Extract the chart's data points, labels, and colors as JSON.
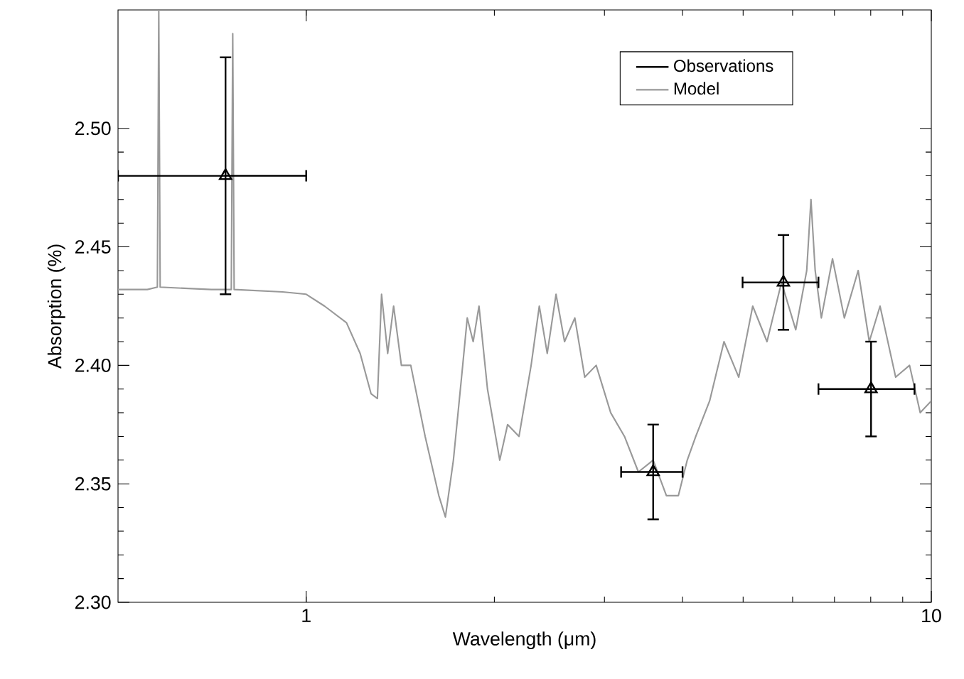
{
  "chart_data": {
    "type": "line",
    "xlabel": "Wavelength (μm)",
    "ylabel": "Absorption (%)",
    "log": "x",
    "xlim": [
      0.5,
      10
    ],
    "ylim": [
      2.3,
      2.55
    ],
    "xticks": [
      1,
      10
    ],
    "yticks": [
      {
        "value": 2.3,
        "label": "2.30"
      },
      {
        "value": 2.35,
        "label": "2.35"
      },
      {
        "value": 2.4,
        "label": "2.40"
      },
      {
        "value": 2.45,
        "label": "2.45"
      },
      {
        "value": 2.5,
        "label": "2.50"
      }
    ],
    "grid": false,
    "legend": "top right",
    "series": [
      {
        "name": "Observations",
        "type": "scatter",
        "color": "#000000",
        "marker": "triangle",
        "x": [
          0.743,
          3.59,
          5.8,
          8.01
        ],
        "values": [
          2.48,
          2.355,
          2.435,
          2.39
        ],
        "errors": [
          0.05,
          0.02,
          0.02,
          0.02
        ],
        "xerrors": [
          [
            0.5,
            1.0
          ],
          [
            3.19,
            4.0
          ],
          [
            4.99,
            6.6
          ],
          [
            6.6,
            9.4
          ]
        ]
      },
      {
        "name": "Model",
        "color": "#999999",
        "x": [
          0.5,
          0.557,
          0.578,
          0.581,
          0.584,
          0.705,
          0.759,
          0.763,
          0.767,
          0.917,
          1.0,
          1.07,
          1.16,
          1.22,
          1.27,
          1.3,
          1.32,
          1.35,
          1.38,
          1.42,
          1.47,
          1.55,
          1.63,
          1.67,
          1.72,
          1.78,
          1.81,
          1.85,
          1.89,
          1.95,
          2.04,
          2.1,
          2.19,
          2.29,
          2.36,
          2.43,
          2.51,
          2.59,
          2.69,
          2.79,
          2.91,
          3.07,
          3.23,
          3.4,
          3.59,
          3.77,
          3.94,
          4.07,
          4.2,
          4.42,
          4.66,
          4.92,
          5.18,
          5.46,
          5.76,
          6.07,
          6.32,
          6.42,
          6.52,
          6.67,
          6.95,
          7.26,
          7.64,
          7.96,
          8.28,
          8.77,
          9.23,
          9.6,
          10.0
        ],
        "values": [
          2.432,
          2.432,
          2.433,
          2.55,
          2.433,
          2.432,
          2.432,
          2.54,
          2.432,
          2.431,
          2.43,
          2.425,
          2.418,
          2.405,
          2.388,
          2.386,
          2.43,
          2.405,
          2.425,
          2.4,
          2.4,
          2.37,
          2.345,
          2.336,
          2.36,
          2.4,
          2.42,
          2.41,
          2.425,
          2.39,
          2.36,
          2.375,
          2.37,
          2.4,
          2.425,
          2.405,
          2.43,
          2.41,
          2.42,
          2.395,
          2.4,
          2.38,
          2.37,
          2.355,
          2.36,
          2.345,
          2.345,
          2.36,
          2.37,
          2.385,
          2.41,
          2.395,
          2.425,
          2.41,
          2.435,
          2.415,
          2.44,
          2.47,
          2.44,
          2.42,
          2.445,
          2.42,
          2.44,
          2.41,
          2.425,
          2.395,
          2.4,
          2.38,
          2.385
        ]
      }
    ]
  }
}
